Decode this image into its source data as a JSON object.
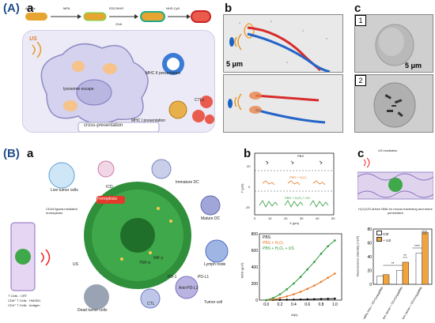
{
  "panel_A": {
    "label": "(A)",
    "sub_a": "a",
    "sub_b": "b",
    "sub_c": "c",
    "synthesis_labels": [
      "AuNRs",
      "MPA",
      "EDC/NHS",
      "OVA",
      "NHS-Cy5"
    ],
    "us_label": "US",
    "mhc2": "MHC II presentation",
    "lysosome": "lysosome escape",
    "mhc1": "MHC I presentation",
    "ctls": "CTLs",
    "cross": "cross-presentation",
    "scale_b": "5 μm",
    "scale_c": "5 μm",
    "c_box1": "1",
    "c_box2": "2"
  },
  "panel_B": {
    "label": "(B)",
    "sub_a": "a",
    "sub_b": "b",
    "sub_c": "c",
    "diagram_labels": {
      "live_tumor": "Live tumor cells",
      "icd": "ICD",
      "immature_dc": "Immature DC",
      "cd44": "CD44 ligand-mediated endocytosis",
      "ferroptosis": "Ferroptosis",
      "mature_dc": "Mature DC",
      "lymph": "Lymph node",
      "us": "US",
      "tnf": "TNF-α",
      "ifn": "INF-γ",
      "pd1": "PD-1",
      "pdl1": "PD-L1",
      "anti_pdl1": "Anti-PD-L1",
      "tumor_cell": "Tumor cell",
      "ctl": "CTL",
      "dead_tumor": "Dead tumor cells",
      "legend": [
        "T Cells",
        "CRT",
        "CD8⁺ T Cells",
        "HMGB1",
        "CD4⁺ T Cells",
        "Antigen"
      ]
    },
    "traj": {
      "ylabel": "Y (μm)",
      "xlabel": "X (μm)",
      "xticks": [
        "0",
        "10",
        "20",
        "30",
        "40",
        "50"
      ],
      "yticks": [
        "-20",
        "0",
        "20"
      ],
      "row_labels": [
        "PBS",
        "PBS + H₂O₂",
        "PBS + H₂O₂ + US"
      ]
    },
    "msd": {
      "ylabel": "MSD (μm²)",
      "xlabel": "Δt(s)",
      "xticks": [
        "0.0",
        "0.2",
        "0.4",
        "0.6",
        "0.8",
        "1.0"
      ],
      "yticks": [
        "0",
        "200",
        "400",
        "600",
        "800"
      ],
      "legend": [
        "PBS",
        "PBS + H₂O₂",
        "PBS + H₂O₂ + US"
      ]
    },
    "c": {
      "us_irradiation": "US irradiation",
      "caption": "H₂O₂/US-driven NMs for mucus traversing and tumor penetration",
      "ylabel": "Fluorescence intensity (×10³)",
      "legend": [
        "Ctrl",
        "+ US"
      ],
      "yticks": [
        "0",
        "20",
        "40",
        "60",
        "80"
      ],
      "categories": [
        "Healthy mice + CD-ConjugNMs",
        "Colon cancer + CD-ConjugNMs",
        "Colon cancer + CD-ConjugNMs"
      ],
      "sig": [
        "**",
        "**",
        "****",
        "****"
      ]
    }
  },
  "chart_data": [
    {
      "type": "line",
      "title": "",
      "xlabel": "Δt(s)",
      "ylabel": "MSD (μm²)",
      "xlim": [
        -0.1,
        1.1
      ],
      "ylim": [
        0,
        800
      ],
      "x": [
        0.0,
        0.1,
        0.2,
        0.3,
        0.4,
        0.5,
        0.6,
        0.7,
        0.8,
        0.9,
        1.0
      ],
      "series": [
        {
          "name": "PBS",
          "color": "#111111",
          "values": [
            0,
            2,
            3,
            5,
            6,
            8,
            10,
            12,
            14,
            16,
            18
          ]
        },
        {
          "name": "PBS + H₂O₂",
          "color": "#e87722",
          "values": [
            0,
            10,
            25,
            45,
            70,
            100,
            135,
            175,
            220,
            270,
            320
          ]
        },
        {
          "name": "PBS + H₂O₂ + US",
          "color": "#2e9a3a",
          "values": [
            0,
            25,
            70,
            130,
            200,
            280,
            370,
            460,
            560,
            650,
            720
          ]
        }
      ]
    },
    {
      "type": "bar",
      "title": "",
      "xlabel": "",
      "ylabel": "Fluorescence intensity (×10³)",
      "ylim": [
        0,
        80
      ],
      "categories": [
        "Healthy mice + CD-ConjugNMs",
        "Colon cancer + CD-ConjugNMs",
        "Colon cancer + CD-ConjugNMs"
      ],
      "series": [
        {
          "name": "Ctrl",
          "color": "#ffffff",
          "values": [
            12,
            20,
            45
          ]
        },
        {
          "name": "+ US",
          "color": "#f2a33a",
          "values": [
            14,
            32,
            75
          ]
        }
      ]
    }
  ]
}
